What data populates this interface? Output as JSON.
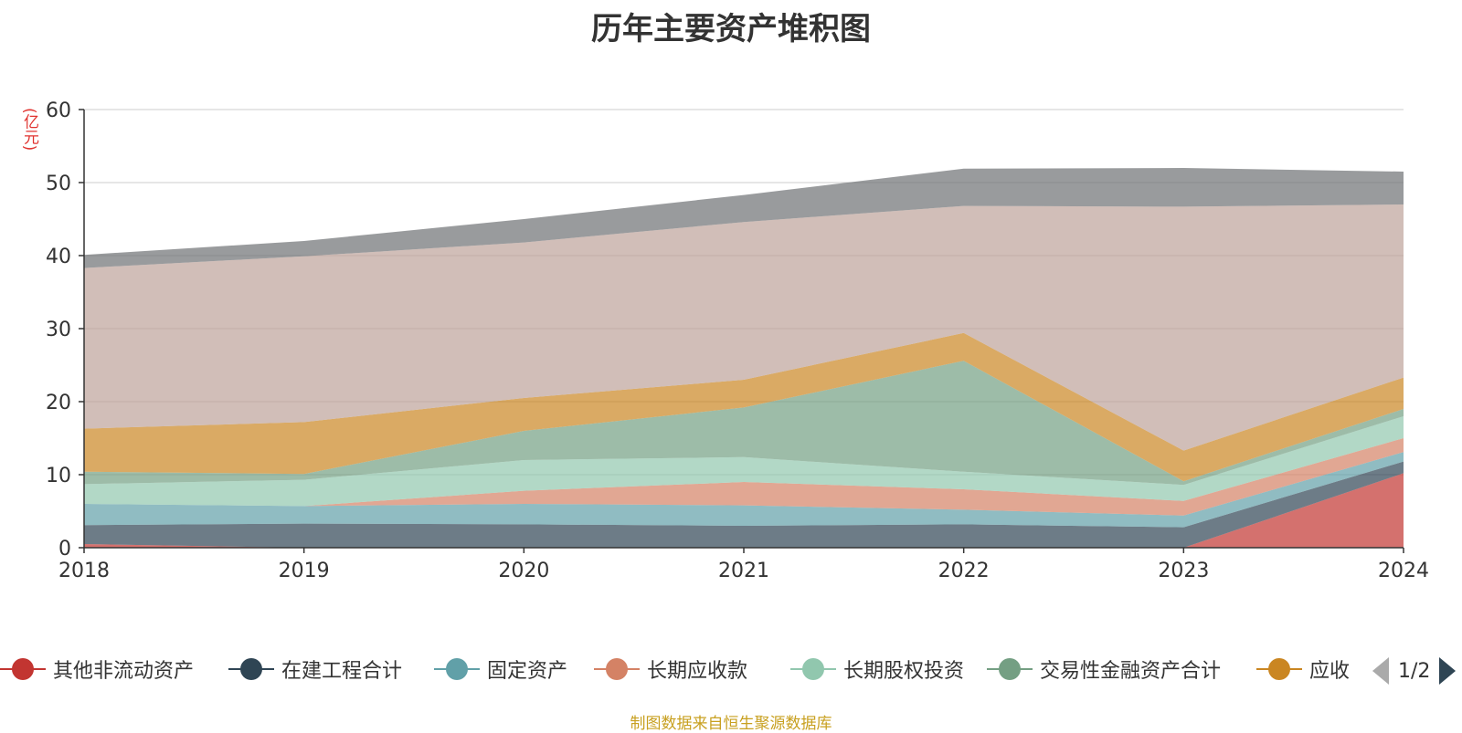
{
  "chart_data": {
    "type": "area",
    "title": "历年主要资产堆积图",
    "ylabel": "(亿元)",
    "ylim": [
      0,
      60
    ],
    "yticks": [
      0,
      10,
      20,
      30,
      40,
      50,
      60
    ],
    "x": [
      "2018",
      "2019",
      "2020",
      "2021",
      "2022",
      "2023",
      "2024"
    ],
    "grid": true,
    "stacked": true,
    "series": [
      {
        "name": "其他非流动资产",
        "color": "#c23531",
        "values": [
          0.5,
          0.0,
          0.0,
          0.0,
          0.0,
          0.0,
          10.2
        ]
      },
      {
        "name": "在建工程合计",
        "color": "#2f4554",
        "values": [
          2.6,
          3.3,
          3.2,
          3.0,
          3.2,
          2.8,
          1.6
        ]
      },
      {
        "name": "固定资产",
        "color": "#61a0a8",
        "values": [
          2.9,
          2.4,
          2.8,
          2.8,
          2.0,
          1.6,
          1.3
        ]
      },
      {
        "name": "长期应收款",
        "color": "#d48265",
        "values": [
          0.0,
          0.0,
          1.8,
          3.2,
          2.8,
          2.0,
          1.9
        ]
      },
      {
        "name": "长期股权投资",
        "color": "#91c7ae",
        "values": [
          2.7,
          3.6,
          4.2,
          3.4,
          2.4,
          2.2,
          3.0
        ]
      },
      {
        "name": "交易性金融资产合计",
        "color": "#749f83",
        "values": [
          1.7,
          0.8,
          4.0,
          6.8,
          15.2,
          0.5,
          1.0
        ]
      },
      {
        "name": "应收",
        "color": "#ca8622",
        "values": [
          5.9,
          7.1,
          4.5,
          3.8,
          3.8,
          4.2,
          4.3
        ]
      },
      {
        "name": "",
        "color": "#bda29a",
        "values": [
          22.0,
          22.7,
          21.3,
          21.6,
          17.4,
          33.4,
          23.7
        ]
      },
      {
        "name": "",
        "color": "#6e7074",
        "values": [
          1.8,
          2.1,
          3.2,
          3.7,
          5.1,
          5.3,
          4.5
        ]
      }
    ]
  },
  "legend": {
    "page": "1/2"
  },
  "footer": {
    "source": "制图数据来自恒生聚源数据库"
  }
}
